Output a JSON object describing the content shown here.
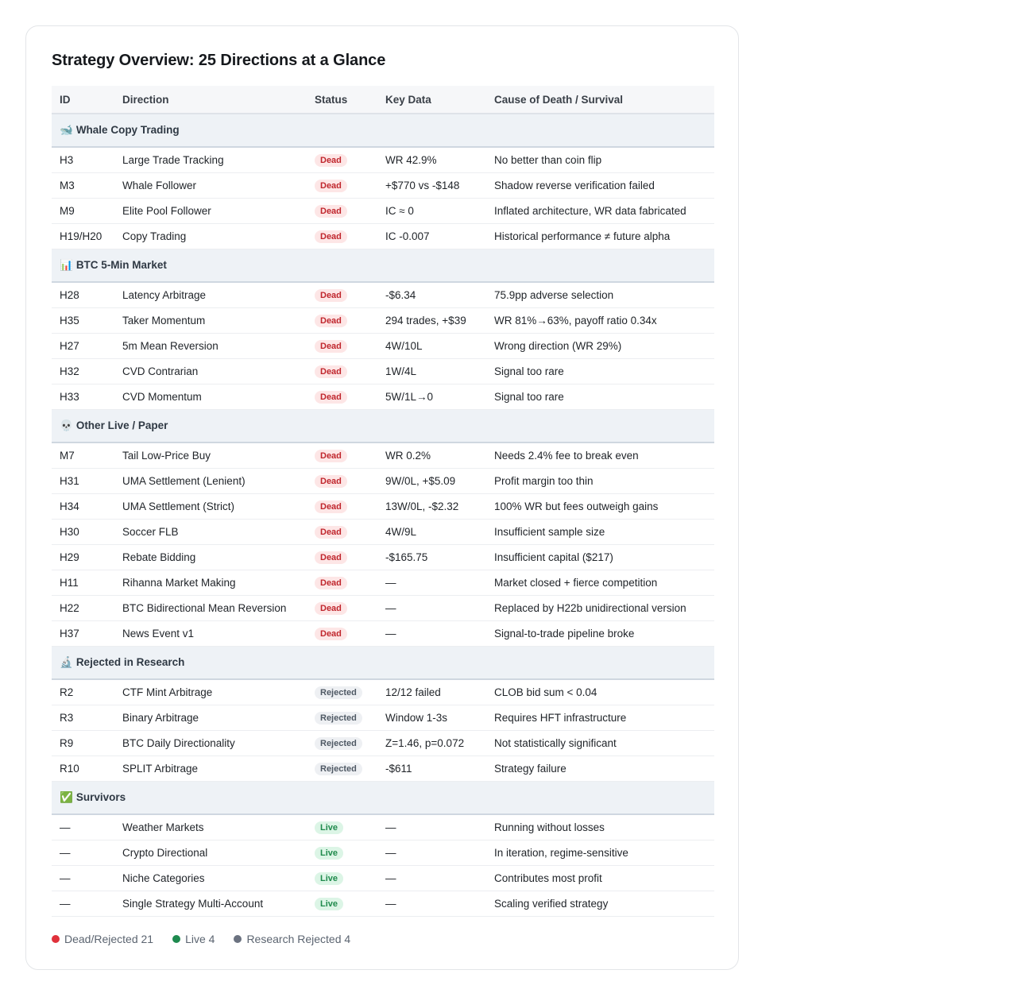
{
  "title": "Strategy Overview: 25 Directions at a Glance",
  "columns": [
    "ID",
    "Direction",
    "Status",
    "Key Data",
    "Cause of Death / Survival"
  ],
  "groups": [
    {
      "emoji": "🐋",
      "label": "Whale Copy Trading",
      "rows": [
        {
          "id": "H3",
          "direction": "Large Trade Tracking",
          "status": "Dead",
          "status_kind": "dead",
          "key": "WR 42.9%",
          "cause": "No better than coin flip"
        },
        {
          "id": "M3",
          "direction": "Whale Follower",
          "status": "Dead",
          "status_kind": "dead",
          "key": "+$770 vs -$148",
          "cause": "Shadow reverse verification failed"
        },
        {
          "id": "M9",
          "direction": "Elite Pool Follower",
          "status": "Dead",
          "status_kind": "dead",
          "key": "IC ≈ 0",
          "cause": "Inflated architecture, WR data fabricated"
        },
        {
          "id": "H19/H20",
          "direction": "Copy Trading",
          "status": "Dead",
          "status_kind": "dead",
          "key": "IC -0.007",
          "cause": "Historical performance ≠ future alpha"
        }
      ]
    },
    {
      "emoji": "📊",
      "label": "BTC 5-Min Market",
      "rows": [
        {
          "id": "H28",
          "direction": "Latency Arbitrage",
          "status": "Dead",
          "status_kind": "dead",
          "key": "-$6.34",
          "cause": "75.9pp adverse selection"
        },
        {
          "id": "H35",
          "direction": "Taker Momentum",
          "status": "Dead",
          "status_kind": "dead",
          "key": "294 trades, +$39",
          "cause": "WR 81%→63%, payoff ratio 0.34x"
        },
        {
          "id": "H27",
          "direction": "5m Mean Reversion",
          "status": "Dead",
          "status_kind": "dead",
          "key": "4W/10L",
          "cause": "Wrong direction (WR 29%)"
        },
        {
          "id": "H32",
          "direction": "CVD Contrarian",
          "status": "Dead",
          "status_kind": "dead",
          "key": "1W/4L",
          "cause": "Signal too rare"
        },
        {
          "id": "H33",
          "direction": "CVD Momentum",
          "status": "Dead",
          "status_kind": "dead",
          "key": "5W/1L→0",
          "cause": "Signal too rare"
        }
      ]
    },
    {
      "emoji": "💀",
      "label": "Other Live / Paper",
      "rows": [
        {
          "id": "M7",
          "direction": "Tail Low-Price Buy",
          "status": "Dead",
          "status_kind": "dead",
          "key": "WR 0.2%",
          "cause": "Needs 2.4% fee to break even"
        },
        {
          "id": "H31",
          "direction": "UMA Settlement (Lenient)",
          "status": "Dead",
          "status_kind": "dead",
          "key": "9W/0L, +$5.09",
          "cause": "Profit margin too thin"
        },
        {
          "id": "H34",
          "direction": "UMA Settlement (Strict)",
          "status": "Dead",
          "status_kind": "dead",
          "key": "13W/0L, -$2.32",
          "cause": "100% WR but fees outweigh gains"
        },
        {
          "id": "H30",
          "direction": "Soccer FLB",
          "status": "Dead",
          "status_kind": "dead",
          "key": "4W/9L",
          "cause": "Insufficient sample size"
        },
        {
          "id": "H29",
          "direction": "Rebate Bidding",
          "status": "Dead",
          "status_kind": "dead",
          "key": "-$165.75",
          "cause": "Insufficient capital ($217)"
        },
        {
          "id": "H11",
          "direction": "Rihanna Market Making",
          "status": "Dead",
          "status_kind": "dead",
          "key": "—",
          "cause": "Market closed + fierce competition"
        },
        {
          "id": "H22",
          "direction": "BTC Bidirectional Mean Reversion",
          "status": "Dead",
          "status_kind": "dead",
          "key": "—",
          "cause": "Replaced by H22b unidirectional version"
        },
        {
          "id": "H37",
          "direction": "News Event v1",
          "status": "Dead",
          "status_kind": "dead",
          "key": "—",
          "cause": "Signal-to-trade pipeline broke"
        }
      ]
    },
    {
      "emoji": "🔬",
      "label": "Rejected in Research",
      "rows": [
        {
          "id": "R2",
          "direction": "CTF Mint Arbitrage",
          "status": "Rejected",
          "status_kind": "rejected",
          "key": "12/12 failed",
          "cause": "CLOB bid sum < 0.04"
        },
        {
          "id": "R3",
          "direction": "Binary Arbitrage",
          "status": "Rejected",
          "status_kind": "rejected",
          "key": "Window 1-3s",
          "cause": "Requires HFT infrastructure"
        },
        {
          "id": "R9",
          "direction": "BTC Daily Directionality",
          "status": "Rejected",
          "status_kind": "rejected",
          "key": "Z=1.46, p=0.072",
          "cause": "Not statistically significant"
        },
        {
          "id": "R10",
          "direction": "SPLIT Arbitrage",
          "status": "Rejected",
          "status_kind": "rejected",
          "key": "-$611",
          "cause": "Strategy failure"
        }
      ]
    },
    {
      "emoji": "✅",
      "label": "Survivors",
      "rows": [
        {
          "id": "—",
          "direction": "Weather Markets",
          "status": "Live",
          "status_kind": "live",
          "key": "—",
          "cause": "Running without losses"
        },
        {
          "id": "—",
          "direction": "Crypto Directional",
          "status": "Live",
          "status_kind": "live",
          "key": "—",
          "cause": "In iteration, regime-sensitive"
        },
        {
          "id": "—",
          "direction": "Niche Categories",
          "status": "Live",
          "status_kind": "live",
          "key": "—",
          "cause": "Contributes most profit"
        },
        {
          "id": "—",
          "direction": "Single Strategy Multi-Account",
          "status": "Live",
          "status_kind": "live",
          "key": "—",
          "cause": "Scaling verified strategy"
        }
      ]
    }
  ],
  "legend": [
    {
      "label": "Dead/Rejected 21",
      "color": "#e0313b"
    },
    {
      "label": "Live 4",
      "color": "#1e8a4f"
    },
    {
      "label": "Research Rejected 4",
      "color": "#6b7280"
    }
  ]
}
